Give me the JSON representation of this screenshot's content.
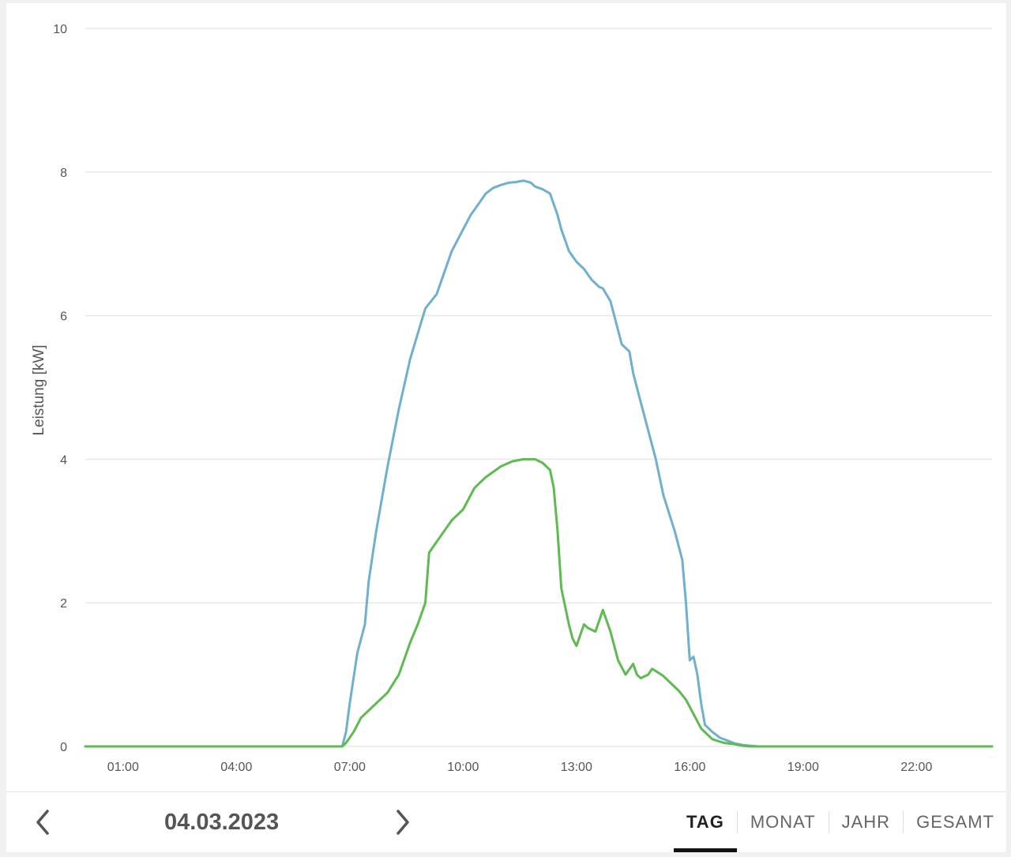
{
  "chart_data": {
    "type": "line",
    "ylabel": "Leistung [kW]",
    "ylim": [
      0,
      10
    ],
    "yticks": [
      0,
      2,
      4,
      6,
      8,
      10
    ],
    "xlim": [
      0,
      24
    ],
    "xticks": [
      {
        "value": 1,
        "label": "01:00"
      },
      {
        "value": 4,
        "label": "04:00"
      },
      {
        "value": 7,
        "label": "07:00"
      },
      {
        "value": 10,
        "label": "10:00"
      },
      {
        "value": 13,
        "label": "13:00"
      },
      {
        "value": 16,
        "label": "16:00"
      },
      {
        "value": 19,
        "label": "19:00"
      },
      {
        "value": 22,
        "label": "22:00"
      }
    ],
    "grid": true,
    "series": [
      {
        "color": "#6fb0cf",
        "x": [
          0,
          6.8,
          6.9,
          7.0,
          7.2,
          7.4,
          7.5,
          7.7,
          8.0,
          8.3,
          8.6,
          9.0,
          9.3,
          9.5,
          9.7,
          9.8,
          10.0,
          10.2,
          10.4,
          10.6,
          10.8,
          11.0,
          11.2,
          11.4,
          11.6,
          11.8,
          11.9,
          12.0,
          12.1,
          12.3,
          12.5,
          12.6,
          12.8,
          13.0,
          13.2,
          13.4,
          13.6,
          13.7,
          13.9,
          14.0,
          14.2,
          14.4,
          14.5,
          14.7,
          14.9,
          15.1,
          15.3,
          15.6,
          15.8,
          15.9,
          16.0,
          16.1,
          16.2,
          16.3,
          16.4,
          16.6,
          16.8,
          17.0,
          17.2,
          17.4,
          17.6,
          17.8,
          24
        ],
        "y": [
          0,
          0,
          0.2,
          0.6,
          1.3,
          1.7,
          2.3,
          3.0,
          3.9,
          4.7,
          5.4,
          6.1,
          6.3,
          6.6,
          6.9,
          7.0,
          7.2,
          7.4,
          7.55,
          7.7,
          7.78,
          7.82,
          7.85,
          7.86,
          7.88,
          7.85,
          7.8,
          7.78,
          7.76,
          7.7,
          7.4,
          7.2,
          6.9,
          6.75,
          6.65,
          6.5,
          6.4,
          6.38,
          6.2,
          6.0,
          5.6,
          5.5,
          5.2,
          4.8,
          4.4,
          4.0,
          3.5,
          3.0,
          2.6,
          2.0,
          1.2,
          1.25,
          1.0,
          0.6,
          0.3,
          0.2,
          0.12,
          0.08,
          0.04,
          0.02,
          0.01,
          0,
          0
        ]
      },
      {
        "color": "#5dbb4f",
        "x": [
          0,
          6.8,
          6.9,
          7.1,
          7.3,
          7.6,
          8.0,
          8.3,
          8.6,
          8.8,
          9.0,
          9.1,
          9.3,
          9.5,
          9.7,
          10.0,
          10.3,
          10.6,
          11.0,
          11.3,
          11.6,
          11.9,
          12.1,
          12.3,
          12.4,
          12.5,
          12.6,
          12.8,
          12.9,
          13.0,
          13.1,
          13.2,
          13.3,
          13.5,
          13.7,
          13.9,
          14.0,
          14.1,
          14.3,
          14.5,
          14.6,
          14.7,
          14.9,
          15.0,
          15.1,
          15.3,
          15.5,
          15.7,
          15.9,
          16.1,
          16.3,
          16.6,
          16.9,
          17.2,
          17.4,
          17.6,
          24
        ],
        "y": [
          0,
          0,
          0.05,
          0.2,
          0.4,
          0.55,
          0.75,
          1.0,
          1.45,
          1.7,
          2.0,
          2.7,
          2.85,
          3.0,
          3.15,
          3.3,
          3.6,
          3.75,
          3.9,
          3.97,
          4.0,
          4.0,
          3.95,
          3.85,
          3.6,
          3.0,
          2.2,
          1.7,
          1.5,
          1.4,
          1.55,
          1.7,
          1.65,
          1.6,
          1.9,
          1.6,
          1.4,
          1.2,
          1.0,
          1.15,
          1.0,
          0.95,
          1.0,
          1.08,
          1.05,
          0.98,
          0.88,
          0.78,
          0.65,
          0.45,
          0.25,
          0.1,
          0.05,
          0.03,
          0.01,
          0,
          0
        ]
      }
    ]
  },
  "footer": {
    "date": "04.03.2023",
    "prev_icon": "chevron-left-icon",
    "next_icon": "chevron-right-icon",
    "tabs": [
      {
        "label": "TAG",
        "active": true
      },
      {
        "label": "MONAT",
        "active": false
      },
      {
        "label": "JAHR",
        "active": false
      },
      {
        "label": "GESAMT",
        "active": false
      }
    ]
  }
}
